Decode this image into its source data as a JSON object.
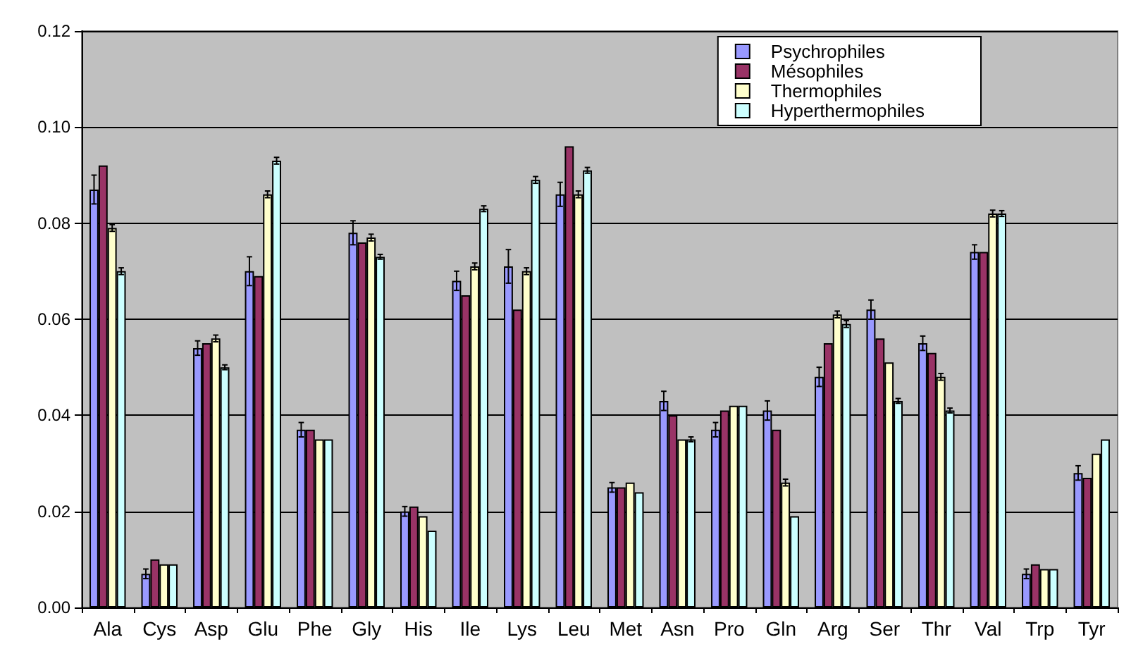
{
  "chart_data": {
    "type": "bar",
    "categories": [
      "Ala",
      "Cys",
      "Asp",
      "Glu",
      "Phe",
      "Gly",
      "His",
      "Ile",
      "Lys",
      "Leu",
      "Met",
      "Asn",
      "Pro",
      "Gln",
      "Arg",
      "Ser",
      "Thr",
      "Val",
      "Trp",
      "Tyr"
    ],
    "series": [
      {
        "name": "Psychrophiles",
        "color": "#9999ff",
        "values": [
          0.087,
          0.007,
          0.054,
          0.07,
          0.037,
          0.078,
          0.02,
          0.068,
          0.071,
          0.086,
          0.025,
          0.043,
          0.037,
          0.041,
          0.048,
          0.062,
          0.055,
          0.074,
          0.007,
          0.028
        ],
        "errors": [
          0.003,
          0.001,
          0.0015,
          0.003,
          0.0015,
          0.0025,
          0.001,
          0.002,
          0.0035,
          0.0025,
          0.001,
          0.002,
          0.0015,
          0.002,
          0.002,
          0.002,
          0.0015,
          0.0015,
          0.001,
          0.0015
        ]
      },
      {
        "name": "Mésophiles",
        "color": "#993366",
        "values": [
          0.092,
          0.01,
          0.055,
          0.069,
          0.037,
          0.076,
          0.021,
          0.065,
          0.062,
          0.096,
          0.025,
          0.04,
          0.041,
          0.037,
          0.055,
          0.056,
          0.053,
          0.074,
          0.009,
          0.027
        ]
      },
      {
        "name": "Thermophiles",
        "color": "#ffffcc",
        "values": [
          0.079,
          0.009,
          0.056,
          0.086,
          0.035,
          0.077,
          0.019,
          0.071,
          0.07,
          0.086,
          0.026,
          0.035,
          0.042,
          0.026,
          0.061,
          0.051,
          0.048,
          0.082,
          0.008,
          0.032
        ],
        "errors": [
          0.0007,
          null,
          0.0007,
          0.0007,
          null,
          0.0007,
          null,
          0.0007,
          0.0007,
          0.0007,
          null,
          null,
          null,
          0.0007,
          0.0007,
          null,
          0.0007,
          0.0007,
          null,
          null
        ]
      },
      {
        "name": "Hyperthermophiles",
        "color": "#ccffff",
        "values": [
          0.07,
          0.009,
          0.05,
          0.093,
          0.035,
          0.073,
          0.016,
          0.083,
          0.089,
          0.091,
          0.024,
          0.035,
          0.042,
          0.019,
          0.059,
          0.043,
          0.041,
          0.082,
          0.008,
          0.035
        ],
        "errors": [
          0.0007,
          null,
          0.0005,
          0.0007,
          null,
          0.0005,
          null,
          0.0006,
          0.0007,
          0.0006,
          null,
          0.0005,
          null,
          null,
          0.0007,
          0.0005,
          0.0005,
          0.0006,
          null,
          null
        ]
      }
    ],
    "ylim": [
      0,
      0.12
    ],
    "yticks": [
      {
        "value": 0,
        "label": "0.00"
      },
      {
        "value": 0.02,
        "label": "0.02"
      },
      {
        "value": 0.04,
        "label": "0.04"
      },
      {
        "value": 0.06,
        "label": "0.06"
      },
      {
        "value": 0.08,
        "label": "0.08"
      },
      {
        "value": 0.1,
        "label": "0.10"
      },
      {
        "value": 0.12,
        "label": "0.12"
      }
    ],
    "grid": "y",
    "legend": "top right"
  }
}
